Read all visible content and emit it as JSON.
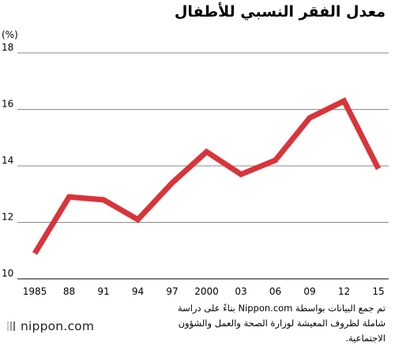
{
  "title": "معدل الفقر النسبي للأطفال",
  "note": "تم جمع البيانات بواسطة Nippon.com بناءً على دراسة شاملة لظروف المعيشة لوزارة الصحة والعمل والشؤون الاجتماعية.",
  "logo_text": "nippon.com",
  "colors": {
    "series": "#d9343a",
    "axis": "#000000",
    "grid": "#8a8a8a"
  },
  "chart_data": {
    "type": "line",
    "title": "معدل الفقر النسبي للأطفال",
    "ylabel": "(%)",
    "xlabel": "",
    "categories": [
      "1985",
      "88",
      "91",
      "94",
      "97",
      "2000",
      "03",
      "06",
      "09",
      "12",
      "15"
    ],
    "x": [
      1985,
      1988,
      1991,
      1994,
      1997,
      2000,
      2003,
      2006,
      2009,
      2012,
      2015
    ],
    "values": [
      10.9,
      12.9,
      12.8,
      12.1,
      13.4,
      14.5,
      13.7,
      14.2,
      15.7,
      16.3,
      13.9
    ],
    "ylim": [
      10,
      18
    ],
    "yticks": [
      10,
      12,
      14,
      16,
      18
    ],
    "grid": true,
    "legend": "none"
  }
}
